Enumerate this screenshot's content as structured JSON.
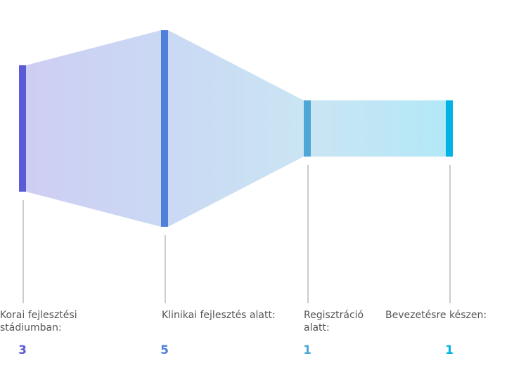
{
  "chart_data": {
    "type": "funnel",
    "categories": [
      "Korai fejlesztési stádiumban:",
      "Klinikai fejlesztés alatt:",
      "Regisztráció alatt:",
      "Bevezetésre készen:"
    ],
    "values": [
      3,
      5,
      1,
      1
    ],
    "colors": [
      "#5b5bd6",
      "#4f7fd9",
      "#4fa7d6",
      "#00b2e6"
    ]
  }
}
